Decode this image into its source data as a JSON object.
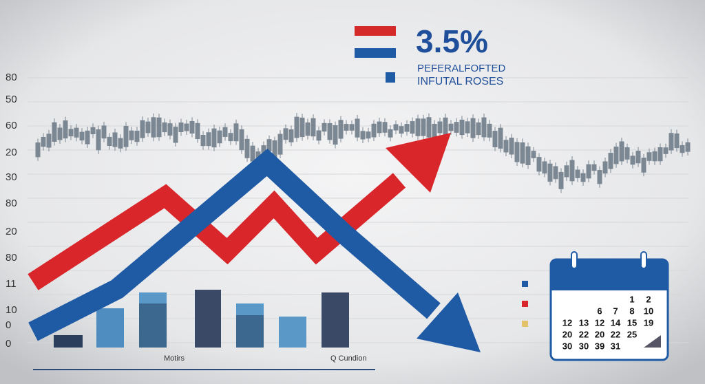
{
  "header": {
    "value": "3.5%",
    "line1": "PEFERALFOFTED",
    "line2": "INFUTAL ROSES"
  },
  "axis_labels": [
    80,
    50,
    60,
    20,
    30,
    80,
    20,
    80,
    11,
    10,
    0,
    0
  ],
  "captions": {
    "left": "Motirs",
    "right": "Q Cundion"
  },
  "calendar": {
    "rows": [
      [
        1,
        2
      ],
      [
        6,
        7,
        8,
        10
      ],
      [
        12,
        13,
        12,
        14,
        15,
        19
      ],
      [
        20,
        22,
        20,
        22,
        25
      ],
      [
        30,
        30,
        39,
        31
      ]
    ]
  }
}
